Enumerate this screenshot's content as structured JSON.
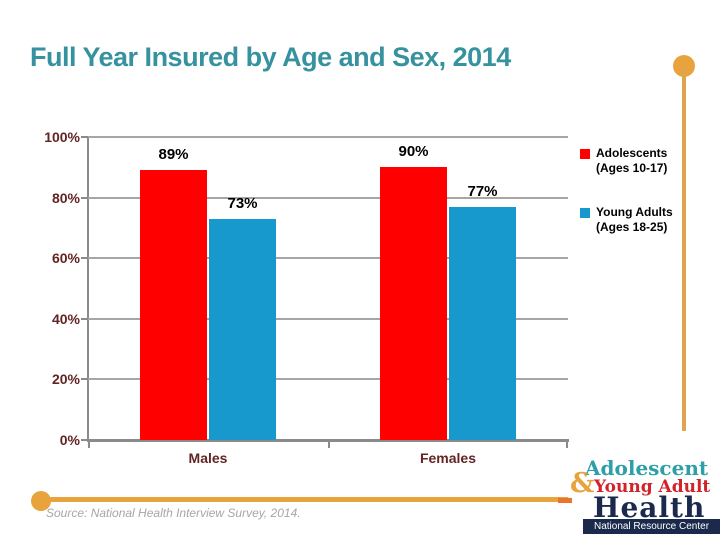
{
  "title": "Full Year Insured by Age and Sex, 2014",
  "chart_data": {
    "type": "bar",
    "categories": [
      "Males",
      "Females"
    ],
    "series": [
      {
        "name": "Adolescents (Ages 10-17)",
        "color": "#fe0000",
        "values": [
          89,
          90
        ]
      },
      {
        "name": "Young Adults (Ages 18-25)",
        "color": "#1899ce",
        "values": [
          73,
          77
        ]
      }
    ],
    "value_suffix": "%",
    "ylim": [
      0,
      100
    ],
    "yticks": [
      {
        "label": "100%",
        "value": 100
      },
      {
        "label": "80%",
        "value": 80
      },
      {
        "label": "60%",
        "value": 60
      },
      {
        "label": "40%",
        "value": 40
      },
      {
        "label": "20%",
        "value": 20
      },
      {
        "label": "0%",
        "value": 0
      }
    ],
    "grid": true,
    "legend_position": "right",
    "title": "Full Year Insured by Age and Sex, 2014",
    "xlabel": "",
    "ylabel": ""
  },
  "legend": {
    "items": [
      {
        "line1": "Adolescents",
        "line2": "(Ages 10-17)",
        "color": "#fe0000"
      },
      {
        "line1": "Young Adults",
        "line2": "(Ages 18-25)",
        "color": "#1899ce"
      }
    ]
  },
  "source_note": "Source: National Health Interview Survey, 2014.",
  "logo": {
    "line1": "Adolescent",
    "amp": "&",
    "line2": "Young Adult",
    "line3": "Health",
    "banner": "National Resource Center"
  },
  "colors": {
    "title_teal": "#35929e",
    "axis_label_maroon": "#632423",
    "bar_red": "#fe0000",
    "bar_blue": "#1899ce",
    "accent_gold": "#e8a33d",
    "gridline_gray": "#a6a6a6",
    "logo_navy": "#1b2a4c",
    "logo_red": "#d2232a",
    "logo_teal": "#2d9fa6",
    "source_gray": "#a6a6a6"
  }
}
